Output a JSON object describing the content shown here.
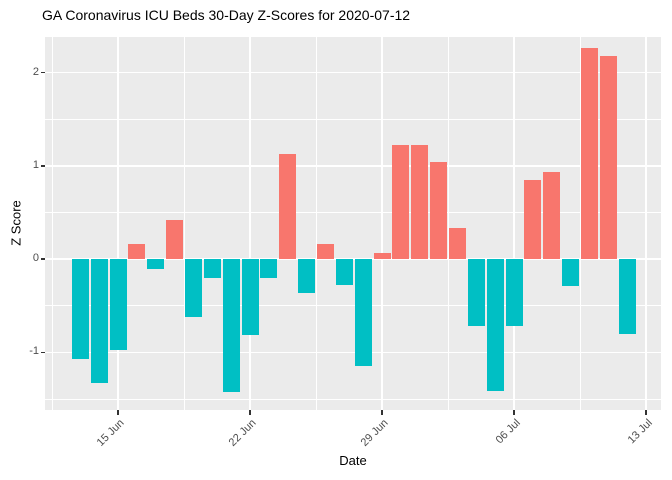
{
  "chart_data": {
    "type": "bar",
    "title": "GA Coronavirus ICU Beds 30-Day Z-Scores for 2020-07-12",
    "xlabel": "Date",
    "ylabel": "Z Score",
    "x": [
      "2020-06-13",
      "2020-06-14",
      "2020-06-15",
      "2020-06-16",
      "2020-06-17",
      "2020-06-18",
      "2020-06-19",
      "2020-06-20",
      "2020-06-21",
      "2020-06-22",
      "2020-06-23",
      "2020-06-24",
      "2020-06-25",
      "2020-06-26",
      "2020-06-27",
      "2020-06-28",
      "2020-06-29",
      "2020-06-30",
      "2020-07-01",
      "2020-07-02",
      "2020-07-03",
      "2020-07-04",
      "2020-07-05",
      "2020-07-06",
      "2020-07-07",
      "2020-07-08",
      "2020-07-09",
      "2020-07-10",
      "2020-07-11",
      "2020-07-12"
    ],
    "values": [
      -1.07,
      -1.33,
      -0.97,
      0.16,
      -0.1,
      0.42,
      -0.62,
      -0.2,
      -1.42,
      -0.81,
      -0.2,
      1.13,
      -0.36,
      0.16,
      -0.28,
      -1.15,
      0.07,
      1.22,
      1.22,
      1.04,
      0.33,
      -0.72,
      -1.41,
      -0.72,
      0.85,
      0.94,
      -0.29,
      2.26,
      2.18,
      -0.8
    ],
    "x_tick_labels": [
      "15 Jun",
      "22 Jun",
      "29 Jun",
      "06 Jul",
      "13 Jul"
    ],
    "x_tick_indices": [
      2,
      9,
      16,
      23,
      30
    ],
    "x_minor_indices": [
      -1.5,
      5.5,
      12.5,
      19.5,
      26.5
    ],
    "y_major_ticks": [
      -1,
      0,
      1,
      2
    ],
    "y_minor_ticks": [
      -1.5,
      -0.5,
      0.5,
      1.5
    ],
    "ylim": [
      -1.617,
      2.383
    ],
    "grid": true,
    "legend": "none",
    "colors": {
      "positive": "#F8766D",
      "negative": "#00BFC4",
      "panel_bg": "#EBEBEB",
      "grid": "#FFFFFF",
      "axis_text": "#4D4D4D",
      "tick_mark": "#333333",
      "title_text": "#000000"
    }
  }
}
